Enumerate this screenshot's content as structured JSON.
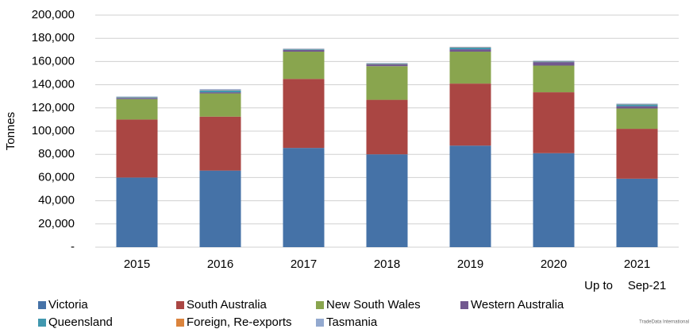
{
  "chart_data": {
    "type": "stacked_bar",
    "y_label": "Tonnes",
    "categories": [
      "2015",
      "2016",
      "2017",
      "2018",
      "2019",
      "2020",
      "2021"
    ],
    "annotations": [
      "Up to",
      "Sep-21"
    ],
    "series": [
      {
        "name": "Victoria",
        "color": "#4572a7",
        "values": [
          60000,
          66000,
          85500,
          80000,
          87500,
          81000,
          59000
        ]
      },
      {
        "name": "South Australia",
        "color": "#aa4643",
        "values": [
          50000,
          46500,
          59500,
          47000,
          53500,
          52500,
          43000
        ]
      },
      {
        "name": "New South Wales",
        "color": "#89a54e",
        "values": [
          17600,
          20000,
          23500,
          29000,
          27500,
          23000,
          17500
        ]
      },
      {
        "name": "Western Australia",
        "color": "#71588f",
        "values": [
          1000,
          1000,
          1500,
          1500,
          2000,
          3000,
          2000
        ]
      },
      {
        "name": "Queensland",
        "color": "#4198af",
        "values": [
          500,
          1500,
          500,
          500,
          1500,
          500,
          1500
        ]
      },
      {
        "name": "Foreign, Re-exports",
        "color": "#db843d",
        "values": [
          200,
          200,
          200,
          200,
          200,
          200,
          200
        ]
      },
      {
        "name": "Tasmania",
        "color": "#93a9cf",
        "values": [
          500,
          1000,
          500,
          500,
          500,
          500,
          500
        ]
      }
    ],
    "ylim": [
      0,
      200000
    ],
    "yticks": [
      {
        "value": 0,
        "label": "-"
      },
      {
        "value": 20000,
        "label": "20,000"
      },
      {
        "value": 40000,
        "label": "40,000"
      },
      {
        "value": 60000,
        "label": "60,000"
      },
      {
        "value": 80000,
        "label": "80,000"
      },
      {
        "value": 100000,
        "label": "100,000"
      },
      {
        "value": 120000,
        "label": "120,000"
      },
      {
        "value": 140000,
        "label": "140,000"
      },
      {
        "value": 160000,
        "label": "160,000"
      },
      {
        "value": 180000,
        "label": "180,000"
      },
      {
        "value": 200000,
        "label": "200,000"
      }
    ],
    "grid": true,
    "logo_text": "TradeData International"
  }
}
